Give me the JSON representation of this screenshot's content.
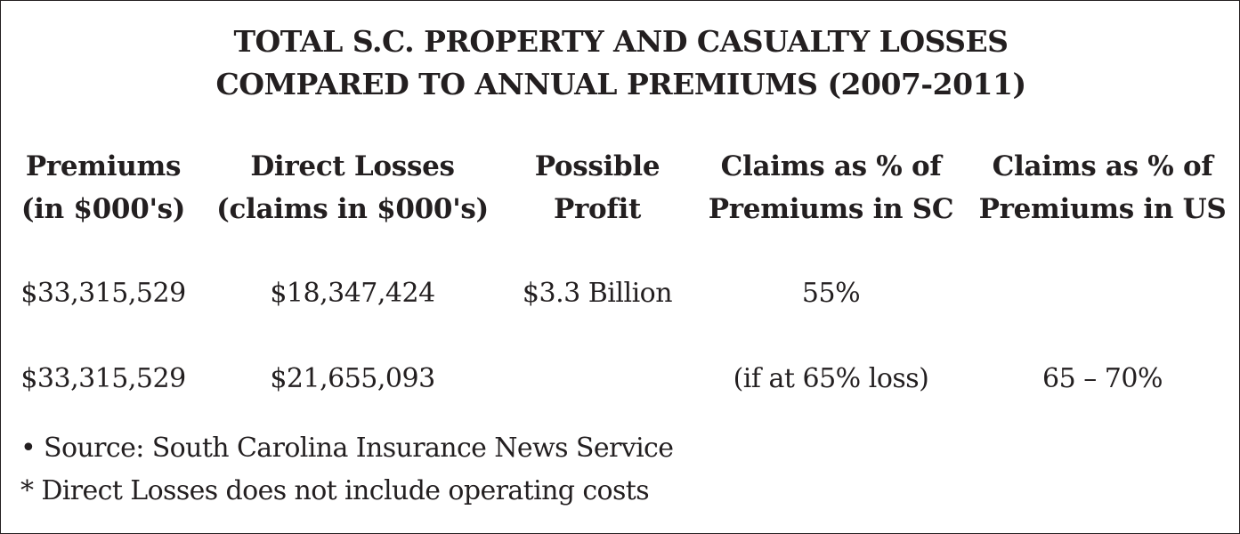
{
  "title": {
    "line1": "TOTAL S.C. PROPERTY AND CASUALTY LOSSES",
    "line2": "COMPARED TO ANNUAL PREMIUMS (2007-2011)"
  },
  "table": {
    "headers": [
      {
        "line1": "Premiums",
        "line2": "(in $000's)"
      },
      {
        "line1": "Direct Losses",
        "line2": "(claims in $000's)"
      },
      {
        "line1": "Possible",
        "line2": "Profit"
      },
      {
        "line1": "Claims as % of",
        "line2": "Premiums in SC"
      },
      {
        "line1": "Claims as % of",
        "line2": "Premiums in US"
      }
    ],
    "rows": [
      [
        "$33,315,529",
        "$18,347,424",
        "$3.3 Billion",
        "55%",
        ""
      ],
      [
        "$33,315,529",
        "$21,655,093",
        "",
        "(if at 65% loss)",
        "65 – 70%"
      ]
    ]
  },
  "notes": {
    "source": "• Source: South Carolina Insurance News Service",
    "footnote": "* Direct Losses does not include operating costs"
  }
}
